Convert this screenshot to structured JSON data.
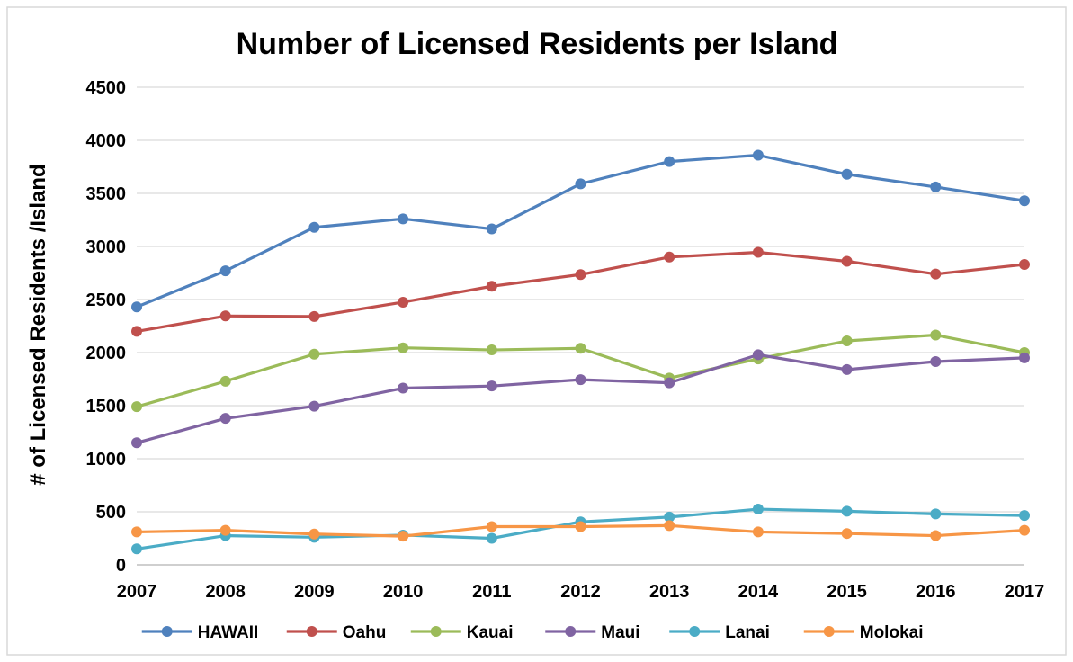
{
  "chart_data": {
    "type": "line",
    "title": "Number of Licensed Residents per Island",
    "xlabel": "",
    "ylabel": "# of Licensed Residents /Island",
    "x": [
      2007,
      2008,
      2009,
      2010,
      2011,
      2012,
      2013,
      2014,
      2015,
      2016,
      2017
    ],
    "x_tick_labels": [
      "2007",
      "2008",
      "2009",
      "2010",
      "2011",
      "2012",
      "2013",
      "2014",
      "2015",
      "2016",
      "2017"
    ],
    "ylim": [
      0,
      4500
    ],
    "y_ticks": [
      0,
      500,
      1000,
      1500,
      2000,
      2500,
      3000,
      3500,
      4000,
      4500
    ],
    "y_tick_labels": [
      "0",
      "500",
      "1000",
      "1500",
      "2000",
      "2500",
      "3000",
      "3500",
      "4000",
      "4500"
    ],
    "grid": true,
    "legend_position": "bottom",
    "series": [
      {
        "name": "HAWAII",
        "color": "#4F81BD",
        "values": [
          2430,
          2770,
          3180,
          3260,
          3165,
          3590,
          3800,
          3860,
          3680,
          3560,
          3430
        ]
      },
      {
        "name": "Oahu",
        "color": "#C0504D",
        "values": [
          2200,
          2345,
          2340,
          2475,
          2625,
          2735,
          2900,
          2945,
          2860,
          2740,
          2830
        ]
      },
      {
        "name": "Kauai",
        "color": "#9BBB59",
        "values": [
          1490,
          1730,
          1985,
          2045,
          2025,
          2040,
          1760,
          1940,
          2110,
          2165,
          2000
        ]
      },
      {
        "name": "Maui",
        "color": "#8064A2",
        "values": [
          1150,
          1380,
          1495,
          1665,
          1685,
          1745,
          1715,
          1980,
          1840,
          1915,
          1950
        ]
      },
      {
        "name": "Lanai",
        "color": "#4BACC6",
        "values": [
          150,
          275,
          260,
          280,
          250,
          405,
          450,
          525,
          505,
          480,
          465
        ]
      },
      {
        "name": "Molokai",
        "color": "#F79646",
        "values": [
          310,
          325,
          290,
          270,
          360,
          360,
          370,
          310,
          295,
          275,
          325
        ]
      }
    ]
  }
}
